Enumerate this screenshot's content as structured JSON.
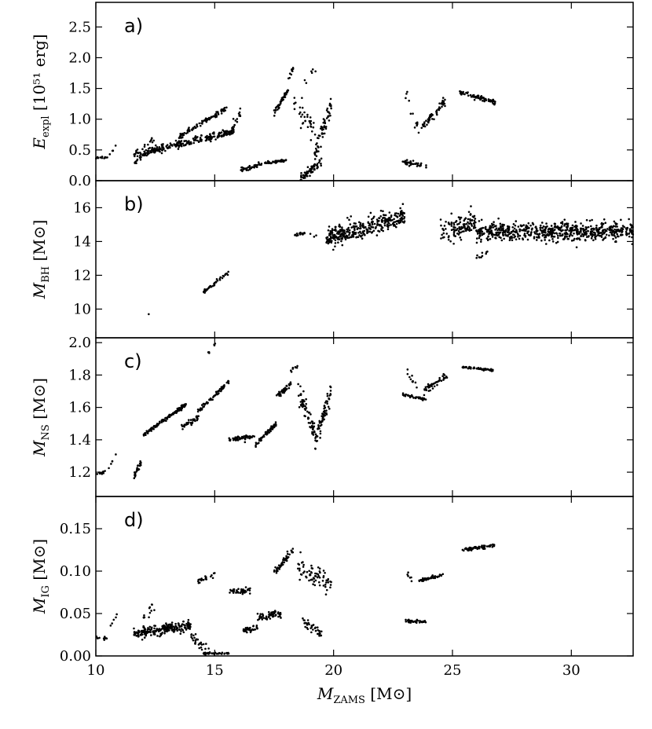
{
  "chart_data": [
    {
      "type": "scatter",
      "panel_label": "a)",
      "ylabel": {
        "main": "E",
        "sub": "expl",
        "unit": "[10⁵¹ erg]"
      },
      "ylim": [
        0.0,
        2.9
      ],
      "yticks": [
        "0.0",
        "0.5",
        "1.0",
        "1.5",
        "2.0",
        "2.5"
      ],
      "ytick_values": [
        0.0,
        0.5,
        1.0,
        1.5,
        2.0,
        2.5
      ],
      "segments": [
        {
          "x": [
            10.0,
            10.5
          ],
          "y": [
            0.38,
            0.38
          ],
          "n": 12,
          "spread": 0.03
        },
        {
          "x": [
            10.55,
            10.85
          ],
          "y": [
            0.42,
            0.56
          ],
          "n": 5,
          "spread": 0.02
        },
        {
          "x": [
            11.6,
            15.8
          ],
          "y": [
            0.42,
            0.8
          ],
          "n": 240,
          "spread": 0.06
        },
        {
          "x": [
            11.6,
            12.4
          ],
          "y": [
            0.28,
            0.5
          ],
          "n": 20,
          "spread": 0.04
        },
        {
          "x": [
            12.0,
            12.5
          ],
          "y": [
            0.55,
            0.7
          ],
          "n": 10,
          "spread": 0.05
        },
        {
          "x": [
            13.5,
            15.5
          ],
          "y": [
            0.72,
            1.18
          ],
          "n": 90,
          "spread": 0.04
        },
        {
          "x": [
            15.6,
            16.2
          ],
          "y": [
            0.76,
            1.15
          ],
          "n": 20,
          "spread": 0.08
        },
        {
          "x": [
            16.1,
            16.9
          ],
          "y": [
            0.17,
            0.25
          ],
          "n": 40,
          "spread": 0.04
        },
        {
          "x": [
            16.9,
            18.0
          ],
          "y": [
            0.27,
            0.33
          ],
          "n": 50,
          "spread": 0.02
        },
        {
          "x": [
            17.5,
            18.1
          ],
          "y": [
            1.1,
            1.48
          ],
          "n": 45,
          "spread": 0.05
        },
        {
          "x": [
            18.0,
            18.3
          ],
          "y": [
            1.6,
            1.8
          ],
          "n": 10,
          "spread": 0.06
        },
        {
          "x": [
            18.3,
            19.3
          ],
          "y": [
            1.25,
            0.8
          ],
          "n": 35,
          "spread": 0.25
        },
        {
          "x": [
            18.6,
            19.5
          ],
          "y": [
            0.05,
            0.3
          ],
          "n": 60,
          "spread": 0.08
        },
        {
          "x": [
            19.2,
            19.9
          ],
          "y": [
            0.4,
            1.25
          ],
          "n": 60,
          "spread": 0.18
        },
        {
          "x": [
            18.7,
            19.3
          ],
          "y": [
            1.6,
            1.85
          ],
          "n": 6,
          "spread": 0.08
        },
        {
          "x": [
            22.9,
            23.9
          ],
          "y": [
            0.3,
            0.25
          ],
          "n": 40,
          "spread": 0.04
        },
        {
          "x": [
            23.0,
            23.6
          ],
          "y": [
            1.45,
            0.8
          ],
          "n": 14,
          "spread": 0.15
        },
        {
          "x": [
            23.7,
            24.7
          ],
          "y": [
            0.85,
            1.3
          ],
          "n": 50,
          "spread": 0.07
        },
        {
          "x": [
            25.3,
            26.8
          ],
          "y": [
            1.43,
            1.28
          ],
          "n": 70,
          "spread": 0.04
        }
      ]
    },
    {
      "type": "scatter",
      "panel_label": "b)",
      "ylabel": {
        "main": "M",
        "sub": "BH",
        "unit": "[M⊙]"
      },
      "ylim": [
        8.3,
        17.6
      ],
      "yticks": [
        "10",
        "12",
        "14",
        "16"
      ],
      "ytick_values": [
        10,
        12,
        14,
        16
      ],
      "segments": [
        {
          "x": [
            12.2,
            12.25
          ],
          "y": [
            9.7,
            9.7
          ],
          "n": 1,
          "spread": 0.0
        },
        {
          "x": [
            14.5,
            15.6
          ],
          "y": [
            11.0,
            12.2
          ],
          "n": 45,
          "spread": 0.1
        },
        {
          "x": [
            18.3,
            18.8
          ],
          "y": [
            14.4,
            14.5
          ],
          "n": 14,
          "spread": 0.1
        },
        {
          "x": [
            19.0,
            19.3
          ],
          "y": [
            14.4,
            14.4
          ],
          "n": 3,
          "spread": 0.1
        },
        {
          "x": [
            19.7,
            23.0
          ],
          "y": [
            14.2,
            15.5
          ],
          "n": 350,
          "spread": 0.55
        },
        {
          "x": [
            24.5,
            26.0
          ],
          "y": [
            14.5,
            15.2
          ],
          "n": 120,
          "spread": 0.7
        },
        {
          "x": [
            26.0,
            32.6
          ],
          "y": [
            14.6,
            14.6
          ],
          "n": 650,
          "spread": 0.55
        },
        {
          "x": [
            26.0,
            26.5
          ],
          "y": [
            13.0,
            13.5
          ],
          "n": 10,
          "spread": 0.2
        }
      ]
    },
    {
      "type": "scatter",
      "panel_label": "c)",
      "ylabel": {
        "main": "M",
        "sub": "NS",
        "unit": "[M⊙]"
      },
      "ylim": [
        1.05,
        2.03
      ],
      "yticks": [
        "1.2",
        "1.4",
        "1.6",
        "1.8",
        "2.0"
      ],
      "ytick_values": [
        1.2,
        1.4,
        1.6,
        1.8,
        2.0
      ],
      "segments": [
        {
          "x": [
            10.0,
            10.5
          ],
          "y": [
            1.19,
            1.21
          ],
          "n": 12,
          "spread": 0.01
        },
        {
          "x": [
            10.5,
            10.9
          ],
          "y": [
            1.22,
            1.32
          ],
          "n": 5,
          "spread": 0.01
        },
        {
          "x": [
            11.6,
            11.9
          ],
          "y": [
            1.18,
            1.26
          ],
          "n": 25,
          "spread": 0.02
        },
        {
          "x": [
            12.0,
            13.8
          ],
          "y": [
            1.43,
            1.62
          ],
          "n": 150,
          "spread": 0.01
        },
        {
          "x": [
            13.6,
            14.4
          ],
          "y": [
            1.48,
            1.55
          ],
          "n": 40,
          "spread": 0.02
        },
        {
          "x": [
            14.2,
            15.6
          ],
          "y": [
            1.56,
            1.76
          ],
          "n": 60,
          "spread": 0.015
        },
        {
          "x": [
            14.6,
            15.2
          ],
          "y": [
            1.92,
            2.02
          ],
          "n": 6,
          "spread": 0.01
        },
        {
          "x": [
            15.6,
            16.7
          ],
          "y": [
            1.4,
            1.42
          ],
          "n": 50,
          "spread": 0.015
        },
        {
          "x": [
            16.7,
            17.6
          ],
          "y": [
            1.37,
            1.5
          ],
          "n": 60,
          "spread": 0.015
        },
        {
          "x": [
            17.6,
            18.2
          ],
          "y": [
            1.66,
            1.75
          ],
          "n": 40,
          "spread": 0.02
        },
        {
          "x": [
            18.2,
            18.5
          ],
          "y": [
            1.82,
            1.86
          ],
          "n": 8,
          "spread": 0.01
        },
        {
          "x": [
            18.5,
            19.2
          ],
          "y": [
            1.7,
            1.45
          ],
          "n": 60,
          "spread": 0.07
        },
        {
          "x": [
            19.2,
            19.9
          ],
          "y": [
            1.38,
            1.7
          ],
          "n": 70,
          "spread": 0.06
        },
        {
          "x": [
            22.9,
            23.9
          ],
          "y": [
            1.68,
            1.65
          ],
          "n": 40,
          "spread": 0.01
        },
        {
          "x": [
            23.1,
            23.5
          ],
          "y": [
            1.82,
            1.72
          ],
          "n": 10,
          "spread": 0.05
        },
        {
          "x": [
            23.8,
            24.8
          ],
          "y": [
            1.71,
            1.8
          ],
          "n": 45,
          "spread": 0.02
        },
        {
          "x": [
            25.4,
            26.7
          ],
          "y": [
            1.85,
            1.83
          ],
          "n": 70,
          "spread": 0.005
        }
      ]
    },
    {
      "type": "scatter",
      "panel_label": "d)",
      "ylabel": {
        "main": "M",
        "sub": "IG",
        "unit": "[M⊙]"
      },
      "ylim": [
        0.0,
        0.188
      ],
      "yticks": [
        "0.00",
        "0.05",
        "0.10",
        "0.15"
      ],
      "ytick_values": [
        0.0,
        0.05,
        0.1,
        0.15
      ],
      "segments": [
        {
          "x": [
            10.0,
            10.5
          ],
          "y": [
            0.021,
            0.021
          ],
          "n": 12,
          "spread": 0.002
        },
        {
          "x": [
            10.6,
            10.9
          ],
          "y": [
            0.035,
            0.05
          ],
          "n": 5,
          "spread": 0.002
        },
        {
          "x": [
            11.6,
            14.0
          ],
          "y": [
            0.027,
            0.036
          ],
          "n": 220,
          "spread": 0.006
        },
        {
          "x": [
            12.0,
            12.5
          ],
          "y": [
            0.045,
            0.06
          ],
          "n": 12,
          "spread": 0.006
        },
        {
          "x": [
            14.0,
            14.8
          ],
          "y": [
            0.022,
            0.005
          ],
          "n": 30,
          "spread": 0.005
        },
        {
          "x": [
            14.5,
            15.6
          ],
          "y": [
            0.003,
            0.003
          ],
          "n": 40,
          "spread": 0.001
        },
        {
          "x": [
            14.3,
            15.0
          ],
          "y": [
            0.088,
            0.095
          ],
          "n": 20,
          "spread": 0.003
        },
        {
          "x": [
            15.6,
            16.5
          ],
          "y": [
            0.075,
            0.078
          ],
          "n": 40,
          "spread": 0.004
        },
        {
          "x": [
            16.2,
            16.8
          ],
          "y": [
            0.03,
            0.033
          ],
          "n": 35,
          "spread": 0.004
        },
        {
          "x": [
            16.8,
            17.8
          ],
          "y": [
            0.045,
            0.05
          ],
          "n": 60,
          "spread": 0.005
        },
        {
          "x": [
            17.5,
            18.3
          ],
          "y": [
            0.098,
            0.125
          ],
          "n": 50,
          "spread": 0.005
        },
        {
          "x": [
            18.5,
            19.9
          ],
          "y": [
            0.105,
            0.085
          ],
          "n": 70,
          "spread": 0.012
        },
        {
          "x": [
            18.7,
            19.5
          ],
          "y": [
            0.04,
            0.025
          ],
          "n": 35,
          "spread": 0.006
        },
        {
          "x": [
            23.0,
            23.9
          ],
          "y": [
            0.041,
            0.04
          ],
          "n": 35,
          "spread": 0.002
        },
        {
          "x": [
            23.1,
            23.4
          ],
          "y": [
            0.1,
            0.08
          ],
          "n": 6,
          "spread": 0.005
        },
        {
          "x": [
            23.6,
            24.6
          ],
          "y": [
            0.089,
            0.095
          ],
          "n": 45,
          "spread": 0.002
        },
        {
          "x": [
            25.4,
            26.8
          ],
          "y": [
            0.125,
            0.13
          ],
          "n": 70,
          "spread": 0.002
        }
      ]
    }
  ],
  "shared_x": {
    "xlim": [
      10,
      32.6
    ],
    "xticks": [
      "10",
      "15",
      "20",
      "25",
      "30"
    ],
    "xtick_values": [
      10,
      15,
      20,
      25,
      30
    ],
    "xlabel": {
      "main": "M",
      "sub": "ZAMS",
      "unit": "[M⊙]"
    }
  }
}
